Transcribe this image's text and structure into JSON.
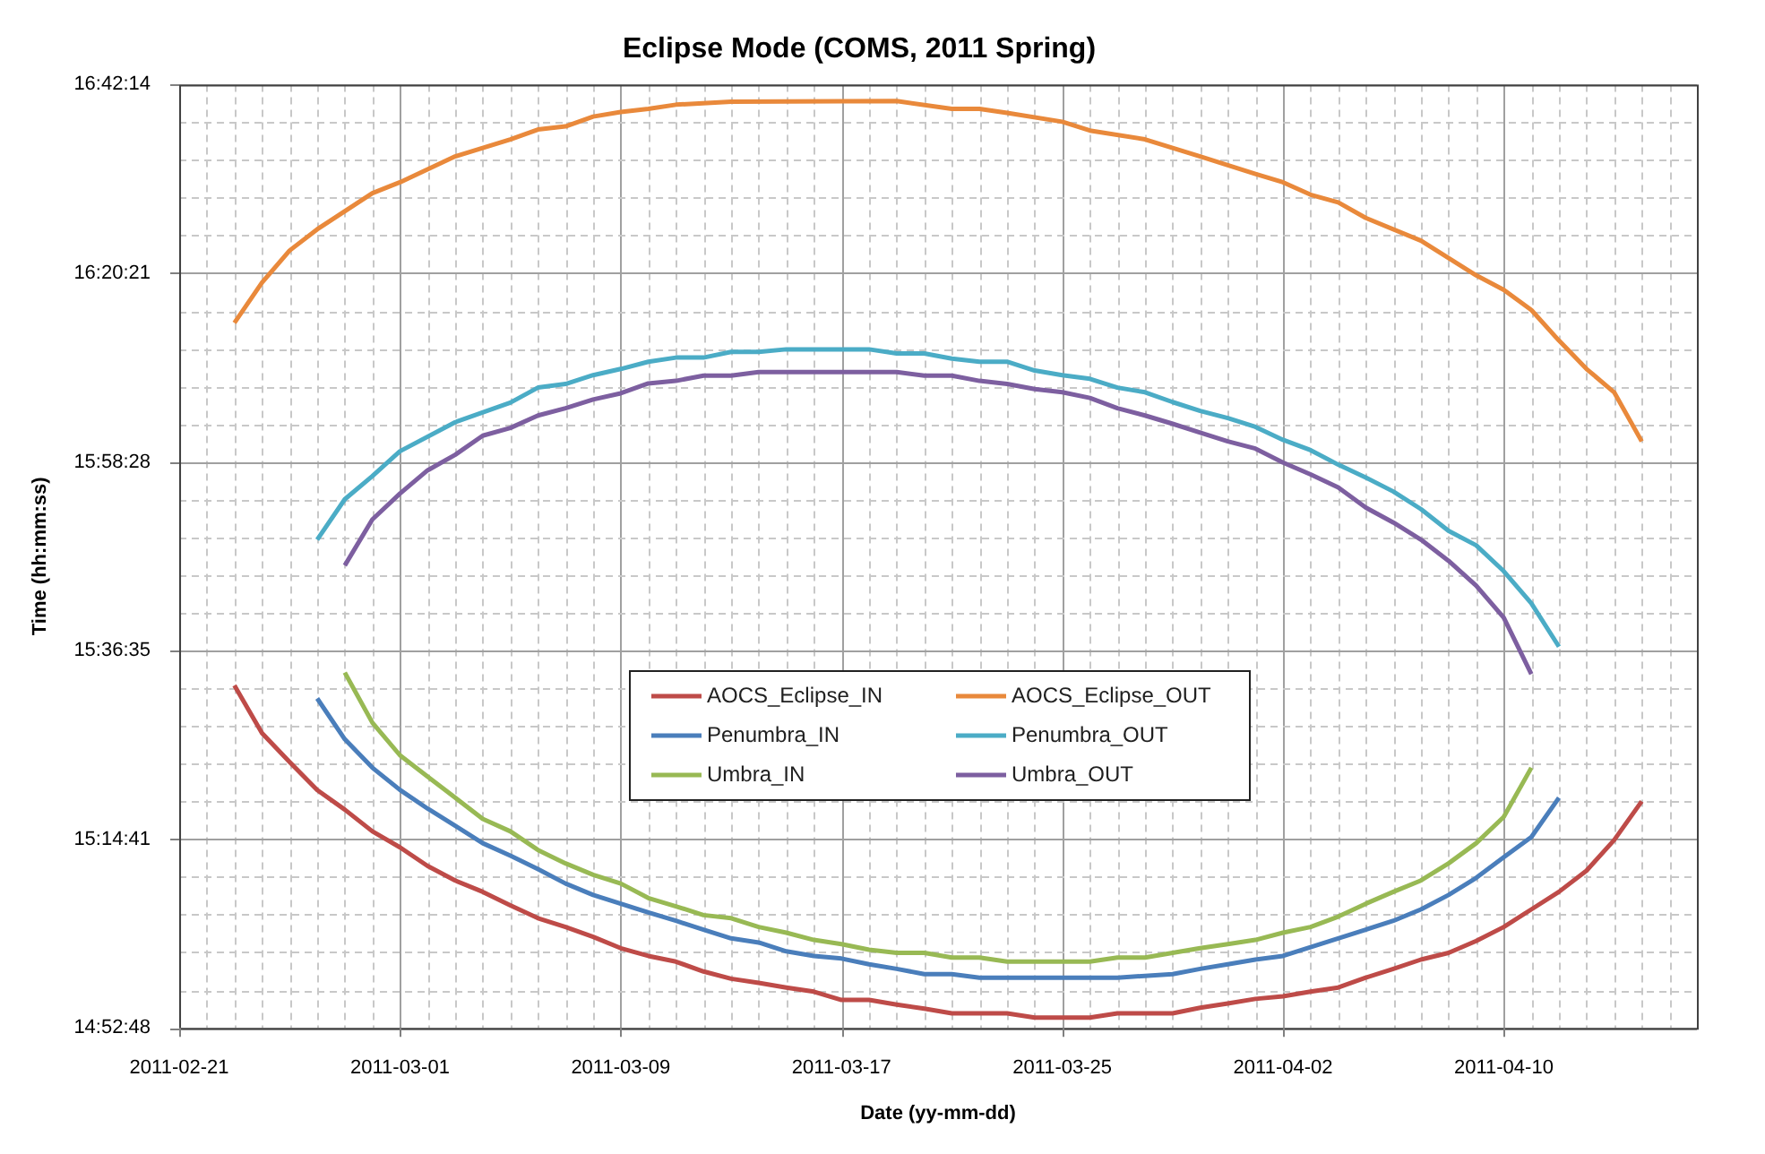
{
  "chart_data": {
    "type": "line",
    "title": "Eclipse Mode (COMS, 2011 Spring)",
    "xlabel": "Date (yy-mm-dd)",
    "ylabel": "Time (hh:mm:ss)",
    "xlim": [
      "2011-02-21",
      "2011-04-17"
    ],
    "xticks": [
      {
        "value": "2011-02-21",
        "label": "2011-02-21"
      },
      {
        "value": "2011-02-22",
        "label": null
      },
      {
        "value": "2011-02-23",
        "label": null
      },
      {
        "value": "2011-02-24",
        "label": null
      },
      {
        "value": "2011-02-25",
        "label": null
      },
      {
        "value": "2011-02-26",
        "label": null
      },
      {
        "value": "2011-02-27",
        "label": null
      },
      {
        "value": "2011-02-28",
        "label": null
      },
      {
        "value": "2011-03-01",
        "label": "2011-03-01"
      },
      {
        "value": "2011-03-02",
        "label": null
      },
      {
        "value": "2011-03-03",
        "label": null
      },
      {
        "value": "2011-03-04",
        "label": null
      },
      {
        "value": "2011-03-05",
        "label": null
      },
      {
        "value": "2011-03-06",
        "label": null
      },
      {
        "value": "2011-03-07",
        "label": null
      },
      {
        "value": "2011-03-08",
        "label": null
      },
      {
        "value": "2011-03-09",
        "label": "2011-03-09"
      },
      {
        "value": "2011-03-10",
        "label": null
      },
      {
        "value": "2011-03-11",
        "label": null
      },
      {
        "value": "2011-03-12",
        "label": null
      },
      {
        "value": "2011-03-13",
        "label": null
      },
      {
        "value": "2011-03-14",
        "label": null
      },
      {
        "value": "2011-03-15",
        "label": null
      },
      {
        "value": "2011-03-16",
        "label": null
      },
      {
        "value": "2011-03-17",
        "label": "2011-03-17"
      },
      {
        "value": "2011-03-18",
        "label": null
      },
      {
        "value": "2011-03-19",
        "label": null
      },
      {
        "value": "2011-03-20",
        "label": null
      },
      {
        "value": "2011-03-21",
        "label": null
      },
      {
        "value": "2011-03-22",
        "label": null
      },
      {
        "value": "2011-03-23",
        "label": null
      },
      {
        "value": "2011-03-24",
        "label": null
      },
      {
        "value": "2011-03-25",
        "label": "2011-03-25"
      },
      {
        "value": "2011-03-26",
        "label": null
      },
      {
        "value": "2011-03-27",
        "label": null
      },
      {
        "value": "2011-03-28",
        "label": null
      },
      {
        "value": "2011-03-29",
        "label": null
      },
      {
        "value": "2011-03-30",
        "label": null
      },
      {
        "value": "2011-03-31",
        "label": null
      },
      {
        "value": "2011-04-01",
        "label": null
      },
      {
        "value": "2011-04-02",
        "label": "2011-04-02"
      },
      {
        "value": "2011-04-03",
        "label": null
      },
      {
        "value": "2011-04-04",
        "label": null
      },
      {
        "value": "2011-04-05",
        "label": null
      },
      {
        "value": "2011-04-06",
        "label": null
      },
      {
        "value": "2011-04-07",
        "label": null
      },
      {
        "value": "2011-04-08",
        "label": null
      },
      {
        "value": "2011-04-09",
        "label": null
      },
      {
        "value": "2011-04-10",
        "label": "2011-04-10"
      },
      {
        "value": "2011-04-11",
        "label": null
      },
      {
        "value": "2011-04-12",
        "label": null
      },
      {
        "value": "2011-04-13",
        "label": null
      },
      {
        "value": "2011-04-14",
        "label": null
      },
      {
        "value": "2011-04-15",
        "label": null
      },
      {
        "value": "2011-04-16",
        "label": null
      },
      {
        "value": "2011-04-17",
        "label": null
      }
    ],
    "ylim": [
      14.88,
      16.703889
    ],
    "yticks": [
      {
        "value": 14.88,
        "label": "14:52:48"
      },
      {
        "value": 14.952944,
        "label": null
      },
      {
        "value": 15.025889,
        "label": null
      },
      {
        "value": 15.098833,
        "label": null
      },
      {
        "value": 15.171778,
        "label": null
      },
      {
        "value": 15.244722,
        "label": "15:14:41"
      },
      {
        "value": 15.317722,
        "label": null
      },
      {
        "value": 15.390722,
        "label": null
      },
      {
        "value": 15.463722,
        "label": null
      },
      {
        "value": 15.536722,
        "label": null
      },
      {
        "value": 15.609722,
        "label": "15:36:35"
      },
      {
        "value": 15.682667,
        "label": null
      },
      {
        "value": 15.755611,
        "label": null
      },
      {
        "value": 15.828556,
        "label": null
      },
      {
        "value": 15.9015,
        "label": null
      },
      {
        "value": 15.974444,
        "label": "15:58:28"
      },
      {
        "value": 16.047389,
        "label": null
      },
      {
        "value": 16.120333,
        "label": null
      },
      {
        "value": 16.193278,
        "label": null
      },
      {
        "value": 16.266222,
        "label": null
      },
      {
        "value": 16.339167,
        "label": "16:20:21"
      },
      {
        "value": 16.412111,
        "label": null
      },
      {
        "value": 16.485056,
        "label": null
      },
      {
        "value": 16.558,
        "label": null
      },
      {
        "value": 16.630944,
        "label": null
      },
      {
        "value": 16.703889,
        "label": "16:42:14"
      }
    ],
    "grid": true,
    "legend": "center",
    "series": [
      {
        "name": "AOCS_Eclipse_IN",
        "color": "#be4b48",
        "x": [
          "2011-02-23",
          "2011-02-24",
          "2011-02-25",
          "2011-02-26",
          "2011-02-27",
          "2011-02-28",
          "2011-03-01",
          "2011-03-02",
          "2011-03-03",
          "2011-03-04",
          "2011-03-05",
          "2011-03-06",
          "2011-03-07",
          "2011-03-08",
          "2011-03-09",
          "2011-03-10",
          "2011-03-11",
          "2011-03-12",
          "2011-03-13",
          "2011-03-14",
          "2011-03-15",
          "2011-03-16",
          "2011-03-17",
          "2011-03-18",
          "2011-03-19",
          "2011-03-20",
          "2011-03-21",
          "2011-03-23",
          "2011-03-24",
          "2011-03-26",
          "2011-03-27",
          "2011-03-29",
          "2011-03-30",
          "2011-03-31",
          "2011-04-01",
          "2011-04-02",
          "2011-04-03",
          "2011-04-04",
          "2011-04-05",
          "2011-04-06",
          "2011-04-07",
          "2011-04-08",
          "2011-04-09",
          "2011-04-10",
          "2011-04-11",
          "2011-04-12",
          "2011-04-13",
          "2011-04-14",
          "2011-04-15"
        ],
        "values": [
          15.542,
          15.45,
          15.394,
          15.34,
          15.302,
          15.26,
          15.229,
          15.193,
          15.165,
          15.143,
          15.117,
          15.092,
          15.075,
          15.056,
          15.034,
          15.019,
          15.008,
          14.989,
          14.975,
          14.967,
          14.958,
          14.95,
          14.934,
          14.934,
          14.925,
          14.917,
          14.908,
          14.908,
          14.9,
          14.9,
          14.908,
          14.908,
          14.919,
          14.927,
          14.936,
          14.941,
          14.95,
          14.958,
          14.977,
          14.994,
          15.012,
          15.025,
          15.048,
          15.075,
          15.109,
          15.143,
          15.184,
          15.243,
          15.318
        ]
      },
      {
        "name": "AOCS_Eclipse_OUT",
        "color": "#e9893b",
        "x": [
          "2011-02-23",
          "2011-02-24",
          "2011-02-25",
          "2011-02-26",
          "2011-02-28",
          "2011-03-01",
          "2011-03-03",
          "2011-03-05",
          "2011-03-06",
          "2011-03-07",
          "2011-03-08",
          "2011-03-09",
          "2011-03-10",
          "2011-03-11",
          "2011-03-13",
          "2011-03-19",
          "2011-03-21",
          "2011-03-22",
          "2011-03-23",
          "2011-03-25",
          "2011-03-26",
          "2011-03-28",
          "2011-03-30",
          "2011-04-01",
          "2011-04-02",
          "2011-04-03",
          "2011-04-04",
          "2011-04-05",
          "2011-04-07",
          "2011-04-09",
          "2011-04-10",
          "2011-04-11",
          "2011-04-12",
          "2011-04-13",
          "2011-04-14",
          "2011-04-15"
        ],
        "values": [
          16.243,
          16.321,
          16.383,
          16.424,
          16.494,
          16.515,
          16.565,
          16.598,
          16.617,
          16.623,
          16.642,
          16.651,
          16.657,
          16.665,
          16.671,
          16.672,
          16.657,
          16.657,
          16.649,
          16.632,
          16.615,
          16.598,
          16.565,
          16.531,
          16.515,
          16.491,
          16.476,
          16.446,
          16.402,
          16.335,
          16.307,
          16.268,
          16.209,
          16.154,
          16.109,
          16.014
        ]
      },
      {
        "name": "Penumbra_IN",
        "color": "#4a7ebb",
        "x": [
          "2011-02-26",
          "2011-02-27",
          "2011-02-28",
          "2011-03-01",
          "2011-03-02",
          "2011-03-03",
          "2011-03-04",
          "2011-03-05",
          "2011-03-06",
          "2011-03-07",
          "2011-03-08",
          "2011-03-09",
          "2011-03-10",
          "2011-03-11",
          "2011-03-12",
          "2011-03-13",
          "2011-03-14",
          "2011-03-15",
          "2011-03-16",
          "2011-03-17",
          "2011-03-18",
          "2011-03-19",
          "2011-03-20",
          "2011-03-21",
          "2011-03-22",
          "2011-03-27",
          "2011-03-29",
          "2011-03-30",
          "2011-03-31",
          "2011-04-01",
          "2011-04-02",
          "2011-04-03",
          "2011-04-04",
          "2011-04-05",
          "2011-04-06",
          "2011-04-07",
          "2011-04-08",
          "2011-04-09",
          "2011-04-10",
          "2011-04-11",
          "2011-04-12"
        ],
        "values": [
          15.517,
          15.438,
          15.383,
          15.34,
          15.304,
          15.271,
          15.237,
          15.213,
          15.187,
          15.159,
          15.137,
          15.12,
          15.103,
          15.087,
          15.07,
          15.053,
          15.045,
          15.028,
          15.019,
          15.014,
          15.003,
          14.994,
          14.984,
          14.984,
          14.977,
          14.977,
          14.984,
          14.994,
          15.003,
          15.012,
          15.019,
          15.036,
          15.053,
          15.07,
          15.087,
          15.109,
          15.137,
          15.17,
          15.21,
          15.249,
          15.325
        ]
      },
      {
        "name": "Penumbra_OUT",
        "color": "#4bacc6",
        "x": [
          "2011-02-26",
          "2011-02-27",
          "2011-02-28",
          "2011-03-01",
          "2011-03-03",
          "2011-03-05",
          "2011-03-06",
          "2011-03-07",
          "2011-03-08",
          "2011-03-09",
          "2011-03-10",
          "2011-03-11",
          "2011-03-12",
          "2011-03-13",
          "2011-03-14",
          "2011-03-15",
          "2011-03-18",
          "2011-03-19",
          "2011-03-20",
          "2011-03-21",
          "2011-03-22",
          "2011-03-23",
          "2011-03-24",
          "2011-03-25",
          "2011-03-26",
          "2011-03-27",
          "2011-03-28",
          "2011-03-29",
          "2011-03-30",
          "2011-03-31",
          "2011-04-01",
          "2011-04-02",
          "2011-04-03",
          "2011-04-04",
          "2011-04-05",
          "2011-04-06",
          "2011-04-07",
          "2011-04-08",
          "2011-04-09",
          "2011-04-10",
          "2011-04-11",
          "2011-04-12"
        ],
        "values": [
          15.824,
          15.902,
          15.947,
          15.995,
          16.051,
          16.089,
          16.118,
          16.125,
          16.142,
          16.154,
          16.168,
          16.176,
          16.176,
          16.187,
          16.187,
          16.192,
          16.192,
          16.184,
          16.184,
          16.174,
          16.168,
          16.168,
          16.151,
          16.142,
          16.135,
          16.118,
          16.109,
          16.09,
          16.073,
          16.059,
          16.042,
          16.017,
          15.997,
          15.969,
          15.944,
          15.917,
          15.883,
          15.841,
          15.813,
          15.763,
          15.701,
          15.617
        ]
      },
      {
        "name": "Umbra_IN",
        "color": "#98b954",
        "x": [
          "2011-02-27",
          "2011-02-28",
          "2011-03-01",
          "2011-03-02",
          "2011-03-03",
          "2011-03-04",
          "2011-03-05",
          "2011-03-06",
          "2011-03-07",
          "2011-03-08",
          "2011-03-09",
          "2011-03-10",
          "2011-03-11",
          "2011-03-12",
          "2011-03-13",
          "2011-03-14",
          "2011-03-15",
          "2011-03-16",
          "2011-03-17",
          "2011-03-18",
          "2011-03-19",
          "2011-03-20",
          "2011-03-21",
          "2011-03-22",
          "2011-03-23",
          "2011-03-26",
          "2011-03-27",
          "2011-03-28",
          "2011-03-29",
          "2011-03-30",
          "2011-03-31",
          "2011-04-01",
          "2011-04-02",
          "2011-04-03",
          "2011-04-04",
          "2011-04-05",
          "2011-04-06",
          "2011-04-07",
          "2011-04-08",
          "2011-04-09",
          "2011-04-10",
          "2011-04-11"
        ],
        "values": [
          15.567,
          15.47,
          15.407,
          15.366,
          15.325,
          15.284,
          15.26,
          15.224,
          15.198,
          15.176,
          15.159,
          15.131,
          15.115,
          15.098,
          15.092,
          15.075,
          15.064,
          15.05,
          15.042,
          15.031,
          15.025,
          15.025,
          15.016,
          15.016,
          15.008,
          15.008,
          15.016,
          15.016,
          15.025,
          15.034,
          15.042,
          15.05,
          15.064,
          15.075,
          15.095,
          15.12,
          15.143,
          15.165,
          15.198,
          15.237,
          15.288,
          15.383
        ]
      },
      {
        "name": "Umbra_OUT",
        "color": "#7d5fa0",
        "x": [
          "2011-02-27",
          "2011-02-28",
          "2011-03-01",
          "2011-03-02",
          "2011-03-03",
          "2011-03-04",
          "2011-03-05",
          "2011-03-06",
          "2011-03-07",
          "2011-03-08",
          "2011-03-09",
          "2011-03-10",
          "2011-03-11",
          "2011-03-12",
          "2011-03-13",
          "2011-03-14",
          "2011-03-19",
          "2011-03-20",
          "2011-03-21",
          "2011-03-22",
          "2011-03-23",
          "2011-03-24",
          "2011-03-25",
          "2011-03-26",
          "2011-03-27",
          "2011-03-28",
          "2011-03-29",
          "2011-03-30",
          "2011-03-31",
          "2011-04-01",
          "2011-04-02",
          "2011-04-03",
          "2011-04-04",
          "2011-04-05",
          "2011-04-06",
          "2011-04-07",
          "2011-04-08",
          "2011-04-09",
          "2011-04-10",
          "2011-04-11"
        ],
        "values": [
          15.774,
          15.863,
          15.913,
          15.958,
          15.988,
          16.025,
          16.04,
          16.064,
          16.078,
          16.095,
          16.107,
          16.126,
          16.131,
          16.141,
          16.141,
          16.148,
          16.148,
          16.141,
          16.141,
          16.131,
          16.125,
          16.115,
          16.109,
          16.098,
          16.078,
          16.064,
          16.048,
          16.031,
          16.014,
          16.0,
          15.973,
          15.95,
          15.925,
          15.886,
          15.857,
          15.824,
          15.783,
          15.735,
          15.673,
          15.564
        ]
      }
    ]
  }
}
